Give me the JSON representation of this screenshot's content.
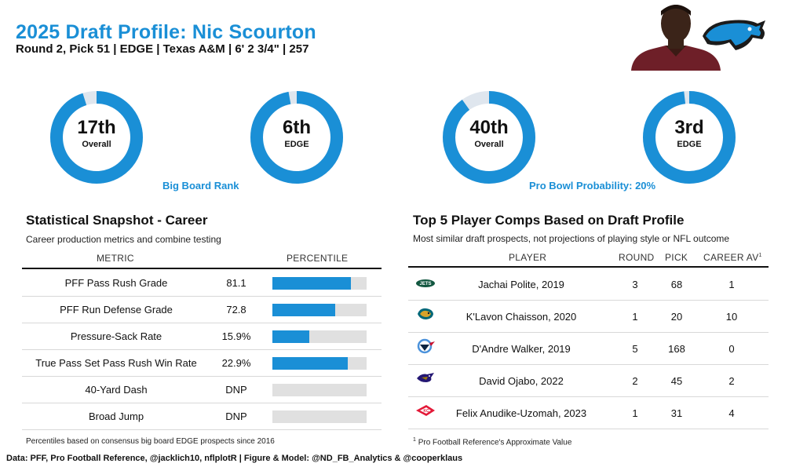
{
  "header": {
    "title": "2025 Draft Profile: Nic Scourton",
    "subtitle": "Round 2, Pick 51 | EDGE | Texas A&M | 6' 2 3/4\" | 257"
  },
  "colors": {
    "accent": "#1a8fd6",
    "ring_track": "#dfe6ee",
    "bar_bg": "#e0e0e0"
  },
  "icons": {
    "team_logo": "panther-icon",
    "headshot": "player-headshot"
  },
  "big_board": {
    "caption": "Big Board Rank",
    "donuts": [
      {
        "value": "17th",
        "label": "Overall",
        "fill": 0.95
      },
      {
        "value": "6th",
        "label": "EDGE",
        "fill": 0.97
      }
    ]
  },
  "pro_bowl": {
    "caption": "Pro Bowl Probability: 20%",
    "donuts": [
      {
        "value": "40th",
        "label": "Overall",
        "fill": 0.9
      },
      {
        "value": "3rd",
        "label": "EDGE",
        "fill": 0.98
      }
    ]
  },
  "snapshot": {
    "title": "Statistical Snapshot - Career",
    "subtitle": "Career production metrics and combine testing",
    "col_metric": "METRIC",
    "col_percentile": "PERCENTILE",
    "rows": [
      {
        "metric": "PFF Pass Rush Grade",
        "value": "81.1",
        "percentile": 83
      },
      {
        "metric": "PFF Run Defense Grade",
        "value": "72.8",
        "percentile": 67
      },
      {
        "metric": "Pressure-Sack Rate",
        "value": "15.9%",
        "percentile": 39
      },
      {
        "metric": "True Pass Set Pass Rush Win Rate",
        "value": "22.9%",
        "percentile": 80
      },
      {
        "metric": "40-Yard Dash",
        "value": "DNP",
        "percentile": 0
      },
      {
        "metric": "Broad Jump",
        "value": "DNP",
        "percentile": 0
      }
    ],
    "footnote": "Percentiles based on consensus big board EDGE prospects since 2016"
  },
  "comps": {
    "title": "Top 5 Player Comps Based on Draft Profile",
    "subtitle": "Most similar draft prospects, not projections of playing style or NFL outcome",
    "col_player": "PLAYER",
    "col_round": "ROUND",
    "col_pick": "PICK",
    "col_career_av": "CAREER AV",
    "col_career_av_sup": "1",
    "rows": [
      {
        "team_icon": "jets-logo-icon",
        "player": "Jachai Polite, 2019",
        "round": "3",
        "pick": "68",
        "av": "1"
      },
      {
        "team_icon": "jaguars-logo-icon",
        "player": "K'Lavon Chaisson, 2020",
        "round": "1",
        "pick": "20",
        "av": "10"
      },
      {
        "team_icon": "titans-logo-icon",
        "player": "D'Andre Walker, 2019",
        "round": "5",
        "pick": "168",
        "av": "0"
      },
      {
        "team_icon": "ravens-logo-icon",
        "player": "David Ojabo, 2022",
        "round": "2",
        "pick": "45",
        "av": "2"
      },
      {
        "team_icon": "chiefs-logo-icon",
        "player": "Felix Anudike-Uzomah, 2023",
        "round": "1",
        "pick": "31",
        "av": "4"
      }
    ],
    "footnote_sup": "1",
    "footnote": "Pro Football Reference's Approximate Value"
  },
  "credit": "Data: PFF, Pro Football Reference, @jacklich10, nflplotR | Figure & Model: @ND_FB_Analytics & @cooperklaus"
}
